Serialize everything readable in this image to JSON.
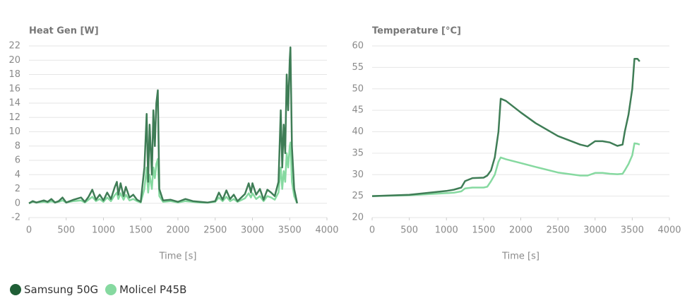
{
  "chart_data": [
    {
      "type": "line",
      "title": "Heat Gen [W]",
      "x_label": "Time [s]",
      "x": [
        0,
        50,
        100,
        200,
        250,
        300,
        350,
        400,
        450,
        500,
        600,
        700,
        750,
        800,
        850,
        900,
        950,
        1000,
        1050,
        1100,
        1150,
        1180,
        1200,
        1230,
        1270,
        1300,
        1350,
        1400,
        1450,
        1500,
        1550,
        1580,
        1600,
        1620,
        1650,
        1670,
        1690,
        1710,
        1730,
        1750,
        1800,
        1900,
        2000,
        2100,
        2200,
        2300,
        2400,
        2500,
        2550,
        2600,
        2650,
        2700,
        2750,
        2800,
        2900,
        2950,
        2980,
        3000,
        3050,
        3100,
        3150,
        3200,
        3250,
        3300,
        3350,
        3380,
        3400,
        3420,
        3440,
        3460,
        3480,
        3500,
        3510,
        3530,
        3560,
        3600
      ],
      "series": [
        {
          "name": "Samsung 50G",
          "color": "#3f7d56",
          "values": [
            0,
            0.3,
            0.1,
            0.4,
            0.2,
            0.6,
            0.1,
            0.3,
            0.8,
            0.1,
            0.5,
            0.8,
            0.2,
            0.9,
            1.9,
            0.5,
            1.2,
            0.4,
            1.5,
            0.6,
            2.2,
            3.0,
            1.2,
            2.8,
            1.0,
            2.3,
            0.8,
            1.2,
            0.5,
            0.2,
            5,
            12.5,
            3,
            11,
            4,
            13,
            8,
            14,
            15.8,
            2,
            0.4,
            0.5,
            0.2,
            0.6,
            0.3,
            0.2,
            0.1,
            0.3,
            1.5,
            0.5,
            1.8,
            0.6,
            1.2,
            0.3,
            1.3,
            2.8,
            1.5,
            2.8,
            1.2,
            2.0,
            0.5,
            1.9,
            1.5,
            1.0,
            3.0,
            13,
            5,
            11,
            7,
            18,
            13,
            20,
            21.8,
            8,
            2,
            0
          ]
        },
        {
          "name": "Molicel P45B",
          "color": "#86d9a0",
          "values": [
            0,
            0.2,
            0.1,
            0.2,
            0.1,
            0.3,
            0.1,
            0.2,
            0.4,
            0.1,
            0.3,
            0.4,
            0.1,
            0.5,
            0.9,
            0.3,
            0.6,
            0.2,
            0.8,
            0.3,
            1.1,
            1.5,
            0.6,
            1.4,
            0.5,
            1.2,
            0.4,
            0.6,
            0.3,
            0.1,
            2,
            5,
            1.5,
            4,
            2,
            5,
            3.5,
            5.5,
            6.2,
            1,
            0.2,
            0.3,
            0.1,
            0.3,
            0.2,
            0.1,
            0.1,
            0.2,
            0.8,
            0.3,
            0.9,
            0.3,
            0.6,
            0.2,
            0.7,
            1.4,
            0.8,
            1.4,
            0.6,
            1.0,
            0.3,
            1.0,
            0.8,
            0.5,
            1.5,
            5,
            2,
            4.5,
            3,
            7,
            5,
            8,
            8.5,
            3,
            1,
            0
          ]
        }
      ],
      "xlim": [
        0,
        4000
      ],
      "xticks": [
        0,
        500,
        1000,
        1500,
        2000,
        2500,
        3000,
        3500,
        4000
      ],
      "ylim": [
        -2,
        22
      ],
      "yticks": [
        -2,
        0,
        2,
        4,
        6,
        8,
        10,
        12,
        14,
        16,
        18,
        20,
        22
      ],
      "grid": true
    },
    {
      "type": "line",
      "title": "Temperature  [°C]",
      "x_label": "Time [s]",
      "x": [
        0,
        500,
        1000,
        1100,
        1200,
        1250,
        1350,
        1500,
        1550,
        1600,
        1650,
        1700,
        1730,
        1800,
        2000,
        2200,
        2500,
        2800,
        2900,
        3000,
        3100,
        3200,
        3300,
        3370,
        3400,
        3450,
        3500,
        3530,
        3570,
        3600
      ],
      "series": [
        {
          "name": "Samsung 50G",
          "color": "#3f7d56",
          "values": [
            25,
            25.3,
            26.2,
            26.5,
            27,
            28.5,
            29.2,
            29.3,
            29.8,
            31,
            34,
            40,
            47.7,
            47.2,
            44.5,
            42,
            39,
            37,
            36.6,
            37.8,
            37.8,
            37.5,
            36.7,
            37,
            40,
            44,
            50,
            57,
            57,
            56.4
          ]
        },
        {
          "name": "Molicel P45B",
          "color": "#86d9a0",
          "values": [
            25,
            25.2,
            25.7,
            25.8,
            26.1,
            26.8,
            27,
            27,
            27.2,
            28.5,
            30,
            33,
            34,
            33.6,
            32.7,
            31.8,
            30.5,
            29.8,
            29.8,
            30.4,
            30.4,
            30.2,
            30.1,
            30.2,
            31,
            32.5,
            34.5,
            37.3,
            37.2,
            37
          ]
        }
      ],
      "xlim": [
        0,
        4000
      ],
      "xticks": [
        0,
        500,
        1000,
        1500,
        2000,
        2500,
        3000,
        3500,
        4000
      ],
      "ylim": [
        20,
        60
      ],
      "yticks": [
        20,
        25,
        30,
        35,
        40,
        45,
        50,
        55,
        60
      ],
      "grid": true
    }
  ]
}
